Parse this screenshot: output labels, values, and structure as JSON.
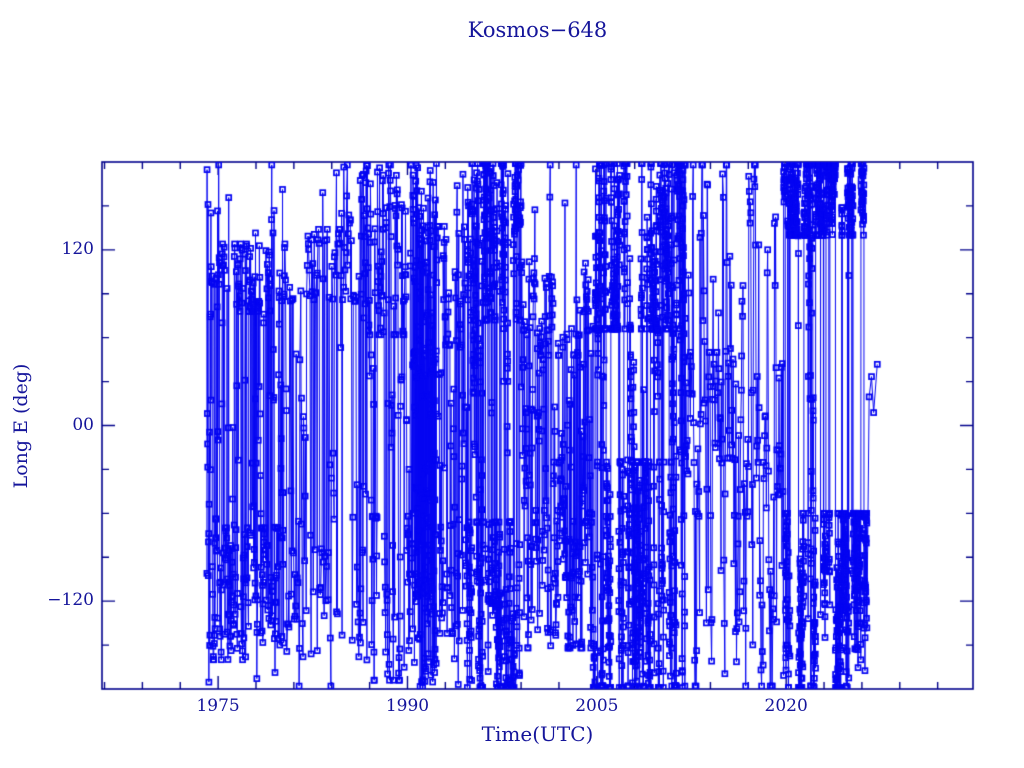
{
  "chart_data": {
    "type": "line",
    "title": "Kosmos−648",
    "xlabel": "Time(UTC)",
    "ylabel": "Long E (deg)",
    "xlim": [
      1965.8,
      2034.8
    ],
    "ylim": [
      -180,
      180
    ],
    "grid": false,
    "legend": null,
    "marker": "open-square",
    "marker_size_px": 5,
    "xticks": {
      "major": [
        1975,
        1990,
        2005,
        2020
      ],
      "labels": [
        "1975",
        "1990",
        "2005",
        "2020"
      ],
      "minor_step_years": 3
    },
    "yticks": {
      "major": [
        120,
        0,
        -120
      ],
      "labels": [
        "120",
        "00",
        "−120"
      ],
      "minor_step_deg": 30
    },
    "colors": {
      "data": "#0404f2",
      "frame": "#00008b",
      "text": "#15159b",
      "background": "#ffffff"
    },
    "series_description": "East longitude history of Kosmos-648 from launch (~1974.1) to ~2027; longitude wraps at ±180° producing dense vertical lines. Points cluster near +80..+130° and −70..−160° through 1974–2004, fill +65..+180° solid during 2005–2012, drift through ±60° during 2012–2019, and form solid blocks at +130..+180° and −60..−180° during 2020–2026.",
    "segments": [
      {
        "t0": 1974.1,
        "t1": 1974.45,
        "rate": 55,
        "switch": 1.0,
        "bands": [
          [
            -178,
            178,
            1.0
          ]
        ]
      },
      {
        "t0": 1974.45,
        "t1": 1980.3,
        "rate": 48,
        "switch": 0.5,
        "bands": [
          [
            78,
            124,
            0.36
          ],
          [
            -160,
            -70,
            0.36
          ],
          [
            -178,
            178,
            0.2
          ],
          [
            -65,
            76,
            0.08
          ]
        ]
      },
      {
        "t0": 1980.3,
        "t1": 1986.2,
        "rate": 23,
        "switch": 0.6,
        "bands": [
          [
            85,
            134,
            0.4
          ],
          [
            -158,
            -72,
            0.38
          ],
          [
            -178,
            178,
            0.14
          ],
          [
            134,
            178,
            0.04
          ],
          [
            -64,
            80,
            0.04
          ]
        ]
      },
      {
        "t0": 1986.2,
        "t1": 1990.4,
        "rate": 42,
        "switch": 0.5,
        "bands": [
          [
            62,
            178,
            0.4
          ],
          [
            -174,
            -62,
            0.38
          ],
          [
            -178,
            178,
            0.12
          ],
          [
            -60,
            60,
            0.1
          ]
        ]
      },
      {
        "t0": 1990.4,
        "t1": 1992.3,
        "rate": 95,
        "switch": 0.9,
        "bands": [
          [
            -179,
            179,
            0.6
          ],
          [
            40,
            178,
            0.2
          ],
          [
            -178,
            -40,
            0.2
          ]
        ]
      },
      {
        "t0": 1992.3,
        "t1": 1994.7,
        "rate": 42,
        "switch": 0.5,
        "bands": [
          [
            55,
            136,
            0.33
          ],
          [
            -142,
            -55,
            0.33
          ],
          [
            -45,
            35,
            0.13
          ],
          [
            -178,
            178,
            0.21
          ]
        ]
      },
      {
        "t0": 1994.7,
        "t1": 1999.0,
        "rate": 115,
        "switch": 0.2,
        "bands": [
          [
            72,
            179,
            0.43
          ],
          [
            -179,
            -66,
            0.43
          ],
          [
            -178,
            178,
            0.08
          ],
          [
            -60,
            70,
            0.06
          ]
        ]
      },
      {
        "t0": 1999.0,
        "t1": 2004.7,
        "rate": 48,
        "switch": 0.5,
        "bands": [
          [
            48,
            114,
            0.34
          ],
          [
            -152,
            -58,
            0.36
          ],
          [
            -178,
            178,
            0.13
          ],
          [
            -55,
            45,
            0.17
          ]
        ]
      },
      {
        "t0": 2004.7,
        "t1": 2012.0,
        "rate": 125,
        "switch": 0.09,
        "bands": [
          [
            66,
            179,
            0.46
          ],
          [
            -179,
            -25,
            0.32
          ],
          [
            -24,
            65,
            0.06
          ],
          [
            -178,
            178,
            0.16
          ]
        ]
      },
      {
        "t0": 2012.0,
        "t1": 2019.8,
        "rate": 26,
        "switch": 0.4,
        "bands": [
          [
            -62,
            50,
            0.48
          ],
          [
            -176,
            -62,
            0.24
          ],
          [
            128,
            178,
            0.06
          ],
          [
            -178,
            178,
            0.22
          ]
        ]
      },
      {
        "t0": 2019.8,
        "t1": 2026.4,
        "rate": 135,
        "switch": 0.08,
        "bands": [
          [
            130,
            179,
            0.4
          ],
          [
            -179,
            -60,
            0.5
          ],
          [
            -178,
            178,
            0.05
          ],
          [
            -58,
            128,
            0.05
          ]
        ]
      },
      {
        "t0": 2026.4,
        "t1": 2027.3,
        "rate": 5,
        "switch": 1.0,
        "bands": [
          [
            -25,
            45,
            1.0
          ]
        ]
      }
    ]
  }
}
